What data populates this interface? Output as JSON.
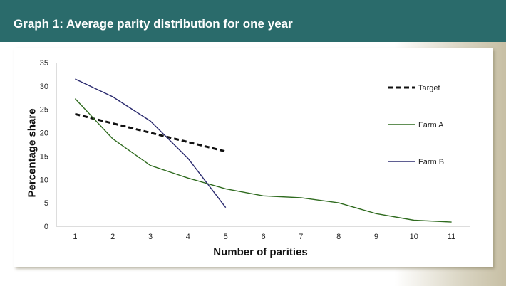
{
  "header": {
    "title": "Graph 1: Average parity distribution for one year"
  },
  "colors": {
    "header_bg": "#2a6b6b",
    "target": "#111111",
    "farm_a": "#2f6b1f",
    "farm_b": "#2a2a6e"
  },
  "chart_data": {
    "type": "line",
    "xlabel": "Number of parities",
    "ylabel": "Percentage share",
    "x_ticks": [
      1,
      2,
      3,
      4,
      5,
      6,
      7,
      8,
      9,
      10,
      11
    ],
    "ylim": [
      0,
      35
    ],
    "y_ticks": [
      0,
      5,
      10,
      15,
      20,
      25,
      30,
      35
    ],
    "grid": false,
    "legend_position": "right",
    "series": [
      {
        "name": "Target",
        "style": "dashed",
        "color": "#111111",
        "x": [
          1,
          2,
          3,
          4,
          5
        ],
        "values": [
          24,
          22,
          20,
          18,
          16
        ]
      },
      {
        "name": "Farm A",
        "style": "solid",
        "color": "#2f6b1f",
        "x": [
          1,
          2,
          3,
          4,
          5,
          6,
          7,
          8,
          9,
          10,
          11
        ],
        "values": [
          27.3,
          18.7,
          13,
          10.3,
          8,
          6.5,
          6.1,
          5,
          2.7,
          1.3,
          0.9
        ]
      },
      {
        "name": "Farm B",
        "style": "solid",
        "color": "#2a2a6e",
        "x": [
          1,
          2,
          3,
          4,
          5
        ],
        "values": [
          31.5,
          27.7,
          22.5,
          14.5,
          4
        ]
      }
    ]
  }
}
